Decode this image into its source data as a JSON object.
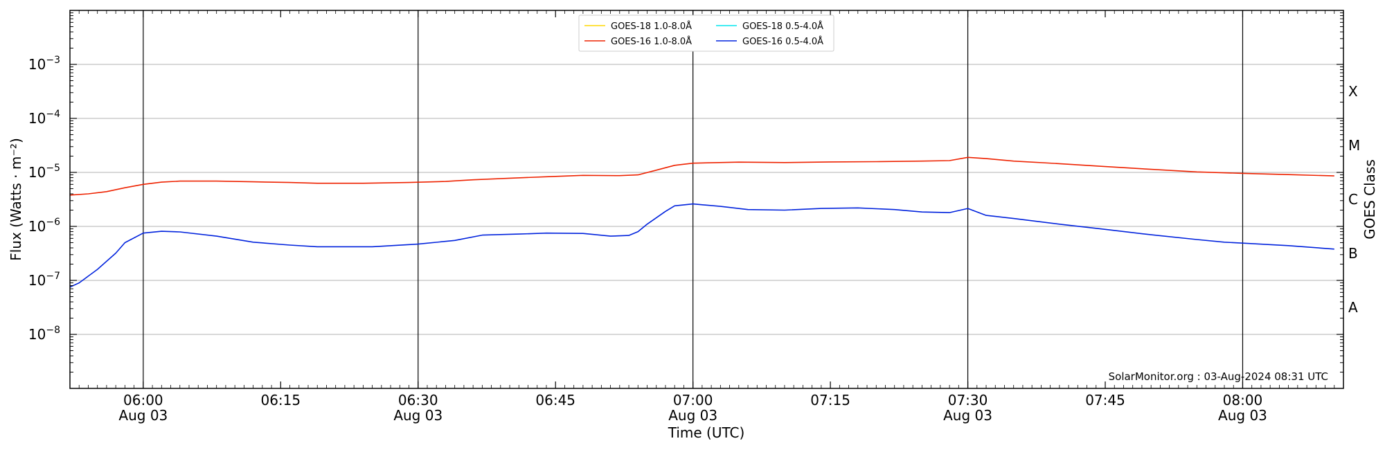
{
  "chart_data": {
    "type": "line",
    "xlabel": "Time (UTC)",
    "ylabel": "Flux (Watts · m⁻²)",
    "y2label": "GOES Class",
    "yscale": "log",
    "ylim": [
      1e-09,
      0.01
    ],
    "xlim": [
      "05:52",
      "08:11"
    ],
    "x_ticks": [
      {
        "time": "06:00",
        "label": "06:00",
        "sublabel": "Aug 03"
      },
      {
        "time": "06:15",
        "label": "06:15",
        "sublabel": ""
      },
      {
        "time": "06:30",
        "label": "06:30",
        "sublabel": "Aug 03"
      },
      {
        "time": "06:45",
        "label": "06:45",
        "sublabel": ""
      },
      {
        "time": "07:00",
        "label": "07:00",
        "sublabel": "Aug 03"
      },
      {
        "time": "07:15",
        "label": "07:15",
        "sublabel": ""
      },
      {
        "time": "07:30",
        "label": "07:30",
        "sublabel": "Aug 03"
      },
      {
        "time": "07:45",
        "label": "07:45",
        "sublabel": ""
      },
      {
        "time": "08:00",
        "label": "08:00",
        "sublabel": "Aug 03"
      }
    ],
    "y_ticks": [
      {
        "value": 0.001,
        "base": "10",
        "exp": "−3"
      },
      {
        "value": 0.0001,
        "base": "10",
        "exp": "−4"
      },
      {
        "value": 1e-05,
        "base": "10",
        "exp": "−5"
      },
      {
        "value": 1e-06,
        "base": "10",
        "exp": "−6"
      },
      {
        "value": 1e-07,
        "base": "10",
        "exp": "−7"
      },
      {
        "value": 1e-08,
        "base": "10",
        "exp": "−8"
      }
    ],
    "goes_classes": [
      {
        "label": "X",
        "value": 0.000316
      },
      {
        "label": "M",
        "value": 3.16e-05
      },
      {
        "label": "C",
        "value": 3.16e-06
      },
      {
        "label": "B",
        "value": 3.16e-07
      },
      {
        "label": "A",
        "value": 3.16e-08
      }
    ],
    "vertical_lines": [
      "06:00",
      "06:30",
      "07:00",
      "07:30",
      "08:00"
    ],
    "grid": "horizontal",
    "legend_position": "top-center",
    "legend": [
      {
        "name": "GOES-18 1.0-8.0Å",
        "color": "#ffd700"
      },
      {
        "name": "GOES-18 0.5-4.0Å",
        "color": "#00e5ee"
      },
      {
        "name": "GOES-16 1.0-8.0Å",
        "color": "#ee2200"
      },
      {
        "name": "GOES-16 0.5-4.0Å",
        "color": "#0022dd"
      }
    ],
    "credit": "SolarMonitor.org : 03-Aug-2024 08:31 UTC",
    "series": [
      {
        "name": "GOES-16 1.0-8.0Å",
        "color": "#ee2200",
        "points": [
          [
            "05:52",
            3.8e-06
          ],
          [
            "05:54",
            4e-06
          ],
          [
            "05:56",
            4.4e-06
          ],
          [
            "05:58",
            5.2e-06
          ],
          [
            "06:00",
            6e-06
          ],
          [
            "06:02",
            6.6e-06
          ],
          [
            "06:04",
            6.9e-06
          ],
          [
            "06:08",
            6.9e-06
          ],
          [
            "06:12",
            6.7e-06
          ],
          [
            "06:16",
            6.5e-06
          ],
          [
            "06:19",
            6.3e-06
          ],
          [
            "06:24",
            6.3e-06
          ],
          [
            "06:29",
            6.5e-06
          ],
          [
            "06:33",
            6.8e-06
          ],
          [
            "06:36",
            7.3e-06
          ],
          [
            "06:40",
            7.8e-06
          ],
          [
            "06:44",
            8.3e-06
          ],
          [
            "06:48",
            8.8e-06
          ],
          [
            "06:52",
            8.7e-06
          ],
          [
            "06:54",
            9e-06
          ],
          [
            "06:56",
            1.1e-05
          ],
          [
            "06:58",
            1.35e-05
          ],
          [
            "07:00",
            1.48e-05
          ],
          [
            "07:05",
            1.55e-05
          ],
          [
            "07:10",
            1.52e-05
          ],
          [
            "07:15",
            1.56e-05
          ],
          [
            "07:20",
            1.58e-05
          ],
          [
            "07:25",
            1.62e-05
          ],
          [
            "07:28",
            1.65e-05
          ],
          [
            "07:30",
            1.9e-05
          ],
          [
            "07:32",
            1.8e-05
          ],
          [
            "07:35",
            1.62e-05
          ],
          [
            "07:40",
            1.45e-05
          ],
          [
            "07:45",
            1.28e-05
          ],
          [
            "07:50",
            1.14e-05
          ],
          [
            "07:55",
            1.02e-05
          ],
          [
            "08:00",
            9.6e-06
          ],
          [
            "08:05",
            9.1e-06
          ],
          [
            "08:10",
            8.6e-06
          ]
        ]
      },
      {
        "name": "GOES-16 0.5-4.0Å",
        "color": "#0022dd",
        "points": [
          [
            "05:52",
            7.5e-08
          ],
          [
            "05:53",
            9e-08
          ],
          [
            "05:55",
            1.6e-07
          ],
          [
            "05:57",
            3.2e-07
          ],
          [
            "05:58",
            5e-07
          ],
          [
            "06:00",
            7.5e-07
          ],
          [
            "06:02",
            8.1e-07
          ],
          [
            "06:04",
            7.9e-07
          ],
          [
            "06:08",
            6.6e-07
          ],
          [
            "06:12",
            5.1e-07
          ],
          [
            "06:16",
            4.5e-07
          ],
          [
            "06:19",
            4.2e-07
          ],
          [
            "06:25",
            4.2e-07
          ],
          [
            "06:30",
            4.7e-07
          ],
          [
            "06:34",
            5.5e-07
          ],
          [
            "06:37",
            6.9e-07
          ],
          [
            "06:41",
            7.2e-07
          ],
          [
            "06:44",
            7.5e-07
          ],
          [
            "06:48",
            7.4e-07
          ],
          [
            "06:51",
            6.6e-07
          ],
          [
            "06:53",
            6.8e-07
          ],
          [
            "06:54",
            8e-07
          ],
          [
            "06:55",
            1.1e-06
          ],
          [
            "06:57",
            1.9e-06
          ],
          [
            "06:58",
            2.4e-06
          ],
          [
            "07:00",
            2.6e-06
          ],
          [
            "07:03",
            2.35e-06
          ],
          [
            "07:06",
            2.05e-06
          ],
          [
            "07:10",
            2e-06
          ],
          [
            "07:14",
            2.15e-06
          ],
          [
            "07:18",
            2.2e-06
          ],
          [
            "07:22",
            2.05e-06
          ],
          [
            "07:25",
            1.85e-06
          ],
          [
            "07:28",
            1.8e-06
          ],
          [
            "07:30",
            2.15e-06
          ],
          [
            "07:32",
            1.6e-06
          ],
          [
            "07:35",
            1.4e-06
          ],
          [
            "07:40",
            1.1e-06
          ],
          [
            "07:45",
            8.8e-07
          ],
          [
            "07:50",
            7e-07
          ],
          [
            "07:55",
            5.7e-07
          ],
          [
            "07:58",
            5.1e-07
          ],
          [
            "08:00",
            4.9e-07
          ],
          [
            "08:05",
            4.4e-07
          ],
          [
            "08:10",
            3.8e-07
          ]
        ]
      }
    ]
  }
}
